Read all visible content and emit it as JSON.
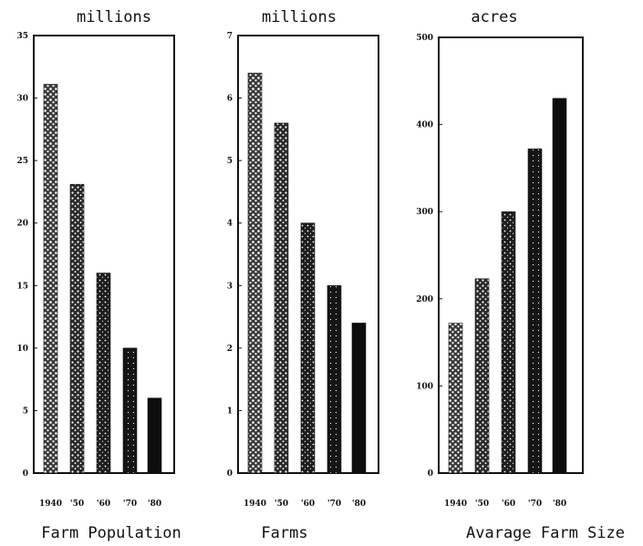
{
  "chart_data": [
    {
      "type": "bar",
      "title": "Farm Population",
      "unit_label": "millions",
      "categories": [
        "1940",
        "'50",
        "'60",
        "'70",
        "'80"
      ],
      "values": [
        31.1,
        23.1,
        16.0,
        10.0,
        6.0
      ],
      "ylim": [
        0,
        35
      ],
      "yticks": [
        "0",
        "5",
        "10",
        "15",
        "20",
        "25",
        "30",
        "35"
      ],
      "bar_style": "stippled, darkening toward later years"
    },
    {
      "type": "bar",
      "title": "Farms",
      "unit_label": "millions",
      "categories": [
        "1940",
        "'50",
        "'60",
        "'70",
        "'80"
      ],
      "values": [
        6.4,
        5.6,
        4.0,
        3.0,
        2.4
      ],
      "ylim": [
        0,
        7
      ],
      "yticks": [
        "0",
        "1",
        "2",
        "3",
        "4",
        "5",
        "6",
        "7"
      ],
      "bar_style": "stippled, darkening toward later years"
    },
    {
      "type": "bar",
      "title": "Avarage Farm Size",
      "unit_label": "acres",
      "categories": [
        "1940",
        "'50",
        "'60",
        "'70",
        "'80"
      ],
      "values": [
        172,
        223,
        300,
        372,
        430
      ],
      "ylim": [
        0,
        500
      ],
      "yticks": [
        "0",
        "100",
        "200",
        "300",
        "400",
        "500"
      ],
      "bar_style": "stippled, darkening toward later years"
    }
  ],
  "colors": {
    "ink": "#111111",
    "background": "#ffffff"
  }
}
